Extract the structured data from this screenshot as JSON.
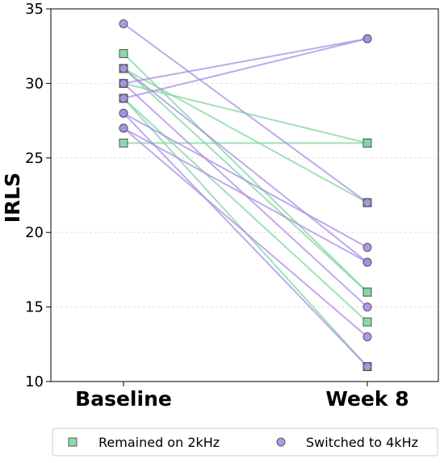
{
  "chart_data": {
    "type": "line",
    "title": "",
    "xlabel": "",
    "ylabel": "IRLS",
    "categories": [
      "Baseline",
      "Week 8"
    ],
    "ylim": [
      10,
      35
    ],
    "yticks": [
      10,
      15,
      20,
      25,
      30,
      35
    ],
    "grid": true,
    "legend_position": "bottom",
    "series": [
      {
        "name": "Remained on 2kHz",
        "marker": "square",
        "color": "#7fd6a0",
        "pairs": [
          [
            32,
            16
          ],
          [
            31,
            16
          ],
          [
            31,
            22
          ],
          [
            30,
            26
          ],
          [
            29,
            14
          ],
          [
            29,
            11
          ],
          [
            26,
            26
          ]
        ]
      },
      {
        "name": "Switched to 4kHz",
        "marker": "circle",
        "color": "#a98ee6",
        "pairs": [
          [
            34,
            22
          ],
          [
            30,
            33
          ],
          [
            29,
            33
          ],
          [
            31,
            18
          ],
          [
            28,
            19
          ],
          [
            27,
            18
          ],
          [
            30,
            15
          ],
          [
            27,
            13
          ],
          [
            28,
            11
          ]
        ]
      }
    ]
  }
}
